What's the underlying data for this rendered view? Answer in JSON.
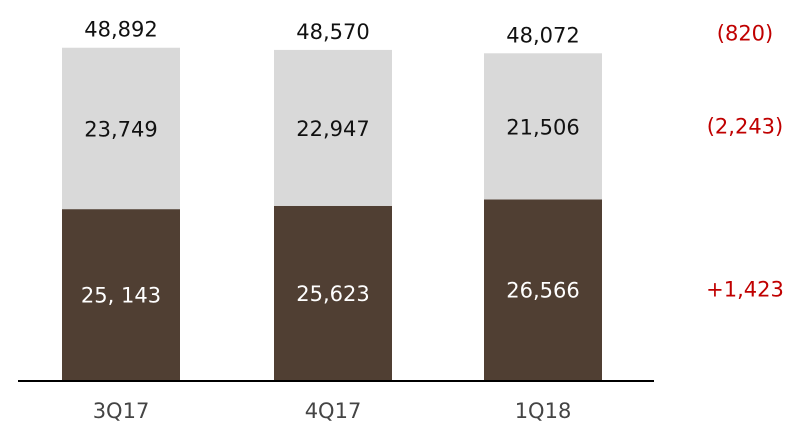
{
  "chart_data": {
    "type": "bar",
    "stacked": true,
    "categories": [
      "3Q17",
      "4Q17",
      "1Q18"
    ],
    "series": [
      {
        "values": [
          25143,
          25623,
          26566
        ],
        "labels": [
          "25, 143",
          "25,623",
          "26,566"
        ],
        "color": "#503f33",
        "label_color": "#ffffff"
      },
      {
        "values": [
          23749,
          22947,
          21506
        ],
        "labels": [
          "23,749",
          "22,947",
          "21,506"
        ],
        "color": "#d9d9d9",
        "label_color": "#111111"
      }
    ],
    "totals": [
      48892,
      48570,
      48072
    ],
    "total_labels": [
      "48,892",
      "48,570",
      "48,072"
    ],
    "changes": [
      {
        "label": "+1,423",
        "series_index": 0
      },
      {
        "label": "(2,243)",
        "series_index": 1
      },
      {
        "label": "(820)",
        "series_index": "total"
      }
    ],
    "change_color": "#c00000",
    "ylim": [
      0,
      49000
    ],
    "title": "",
    "xlabel": "",
    "ylabel": ""
  }
}
